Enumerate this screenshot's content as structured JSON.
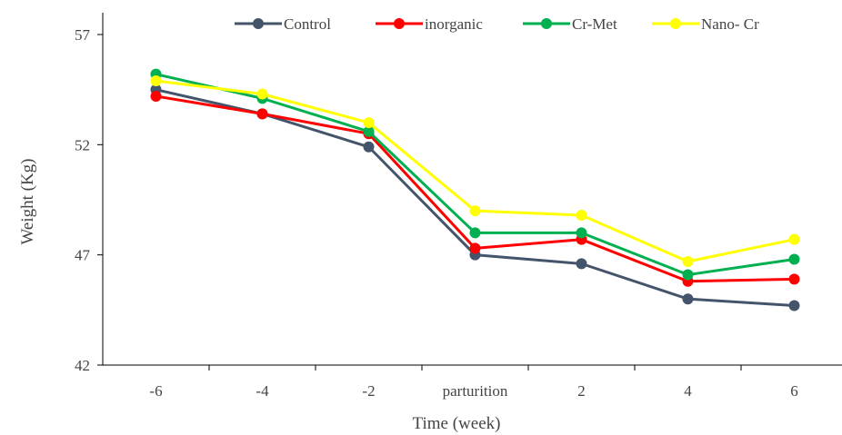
{
  "chart_data": {
    "type": "line",
    "categories": [
      "-6",
      "-4",
      "-2",
      "parturition",
      "2",
      "4",
      "6"
    ],
    "series": [
      {
        "name": "Control",
        "color": "#44546a",
        "values": [
          54.5,
          53.4,
          51.9,
          47.0,
          46.6,
          45.0,
          44.7
        ]
      },
      {
        "name": "inorganic",
        "color": "#ff0000",
        "values": [
          54.2,
          53.4,
          52.5,
          47.3,
          47.7,
          45.8,
          45.9
        ]
      },
      {
        "name": "Cr-Met",
        "color": "#00b050",
        "values": [
          55.2,
          54.1,
          52.6,
          48.0,
          48.0,
          46.1,
          46.8
        ]
      },
      {
        "name": "Nano- Cr",
        "color": "#ffff00",
        "values": [
          54.9,
          54.3,
          53.0,
          49.0,
          48.8,
          46.7,
          47.7
        ]
      }
    ],
    "xlabel": "Time (week)",
    "ylabel": "Weight (Kg)",
    "ylim": [
      42,
      57
    ],
    "yticks": [
      "42",
      "47",
      "52",
      "57"
    ],
    "grid": false,
    "legend_position": "top"
  }
}
